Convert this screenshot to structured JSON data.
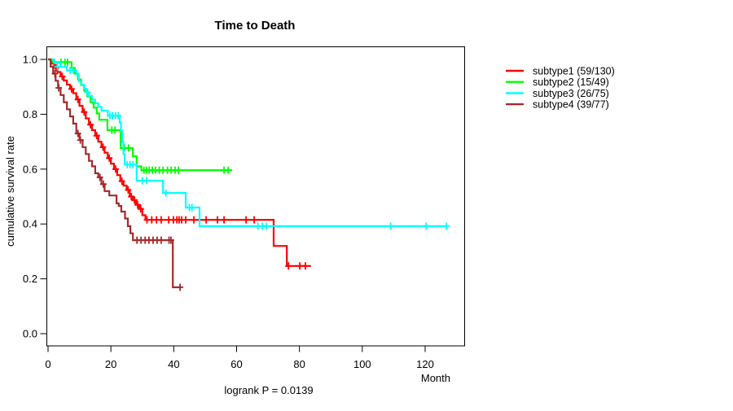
{
  "chart_data": {
    "type": "line",
    "subtype": "kaplan-meier-step",
    "title": "Time to Death",
    "xlabel": "Month",
    "ylabel": "cumulative survival rate",
    "footnote": "logrank P = 0.0139",
    "xlim": [
      0,
      132
    ],
    "ylim": [
      0,
      1.05
    ],
    "x_ticks": [
      0,
      20,
      40,
      60,
      80,
      100,
      120
    ],
    "y_ticks": [
      "0.0",
      "0.2",
      "0.4",
      "0.6",
      "0.8",
      "1.0"
    ],
    "grid": false,
    "legend_position": "right-outside",
    "axis_color": "#000000",
    "series": [
      {
        "name": "subtype1",
        "label": "subtype1 (59/130)",
        "color": "#FF0000",
        "steps": [
          [
            0,
            1.0
          ],
          [
            1,
            0.985
          ],
          [
            2,
            0.969
          ],
          [
            3,
            0.954
          ],
          [
            4,
            0.938
          ],
          [
            5,
            0.923
          ],
          [
            6,
            0.908
          ],
          [
            7,
            0.892
          ],
          [
            8,
            0.877
          ],
          [
            9,
            0.854
          ],
          [
            10,
            0.831
          ],
          [
            11,
            0.808
          ],
          [
            12,
            0.785
          ],
          [
            13,
            0.762
          ],
          [
            14,
            0.742
          ],
          [
            15,
            0.722
          ],
          [
            16,
            0.7
          ],
          [
            17,
            0.68
          ],
          [
            18,
            0.66
          ],
          [
            19,
            0.64
          ],
          [
            20,
            0.62
          ],
          [
            21,
            0.6
          ],
          [
            22,
            0.578
          ],
          [
            23,
            0.556
          ],
          [
            24,
            0.54
          ],
          [
            25,
            0.524
          ],
          [
            26,
            0.5
          ],
          [
            27,
            0.487
          ],
          [
            28,
            0.47
          ],
          [
            29,
            0.455
          ],
          [
            30,
            0.432
          ],
          [
            31,
            0.415
          ],
          [
            71.8,
            0.415
          ],
          [
            71.8,
            0.32
          ],
          [
            76,
            0.32
          ],
          [
            76,
            0.247
          ],
          [
            83.7,
            0.247
          ]
        ],
        "censors": [
          [
            2.5,
            0.969
          ],
          [
            4.5,
            0.938
          ],
          [
            7.5,
            0.892
          ],
          [
            9.5,
            0.854
          ],
          [
            11.5,
            0.808
          ],
          [
            13.5,
            0.762
          ],
          [
            15.5,
            0.722
          ],
          [
            17.5,
            0.68
          ],
          [
            19.5,
            0.64
          ],
          [
            21.5,
            0.6
          ],
          [
            23.5,
            0.556
          ],
          [
            25.5,
            0.524
          ],
          [
            26.5,
            0.5
          ],
          [
            27.5,
            0.487
          ],
          [
            28.5,
            0.47
          ],
          [
            29.5,
            0.455
          ],
          [
            31.5,
            0.415
          ],
          [
            33,
            0.415
          ],
          [
            34.5,
            0.415
          ],
          [
            36,
            0.415
          ],
          [
            38.4,
            0.415
          ],
          [
            39.9,
            0.415
          ],
          [
            41,
            0.415
          ],
          [
            41.7,
            0.415
          ],
          [
            42.5,
            0.415
          ],
          [
            43.8,
            0.415
          ],
          [
            46.4,
            0.415
          ],
          [
            48.2,
            0.415
          ],
          [
            50.3,
            0.415
          ],
          [
            53.9,
            0.415
          ],
          [
            56,
            0.415
          ],
          [
            63,
            0.415
          ],
          [
            65.6,
            0.415
          ],
          [
            76.5,
            0.247
          ],
          [
            80.1,
            0.247
          ],
          [
            81.9,
            0.247
          ]
        ]
      },
      {
        "name": "subtype2",
        "label": "subtype2 (15/49)",
        "color": "#00FF00",
        "steps": [
          [
            0,
            1.0
          ],
          [
            1.5,
            0.99
          ],
          [
            7.5,
            0.969
          ],
          [
            8.5,
            0.948
          ],
          [
            9.5,
            0.927
          ],
          [
            10.5,
            0.906
          ],
          [
            11.5,
            0.886
          ],
          [
            12.5,
            0.865
          ],
          [
            13.5,
            0.844
          ],
          [
            14.5,
            0.824
          ],
          [
            15.5,
            0.803
          ],
          [
            16.3,
            0.78
          ],
          [
            18.9,
            0.742
          ],
          [
            23.1,
            0.677
          ],
          [
            27,
            0.647
          ],
          [
            28.2,
            0.61
          ],
          [
            29.7,
            0.596
          ],
          [
            58.6,
            0.596
          ]
        ],
        "censors": [
          [
            4.1,
            0.99
          ],
          [
            5.4,
            0.99
          ],
          [
            6.2,
            0.99
          ],
          [
            20.3,
            0.742
          ],
          [
            21.3,
            0.742
          ],
          [
            24.3,
            0.677
          ],
          [
            25.6,
            0.677
          ],
          [
            30.5,
            0.596
          ],
          [
            31.3,
            0.596
          ],
          [
            32.2,
            0.596
          ],
          [
            33.2,
            0.596
          ],
          [
            34.2,
            0.596
          ],
          [
            35.4,
            0.596
          ],
          [
            36.6,
            0.596
          ],
          [
            38,
            0.596
          ],
          [
            39.2,
            0.596
          ],
          [
            40.4,
            0.596
          ],
          [
            41.5,
            0.596
          ],
          [
            56,
            0.596
          ],
          [
            57.3,
            0.596
          ]
        ]
      },
      {
        "name": "subtype3",
        "label": "subtype3 (26/75)",
        "color": "#00FFFF",
        "steps": [
          [
            0,
            1.0
          ],
          [
            2,
            0.987
          ],
          [
            4,
            0.973
          ],
          [
            6,
            0.96
          ],
          [
            9,
            0.947
          ],
          [
            9.8,
            0.92
          ],
          [
            10.6,
            0.907
          ],
          [
            11.4,
            0.893
          ],
          [
            12.2,
            0.88
          ],
          [
            13,
            0.867
          ],
          [
            14,
            0.853
          ],
          [
            15,
            0.84
          ],
          [
            16,
            0.827
          ],
          [
            17,
            0.813
          ],
          [
            19,
            0.795
          ],
          [
            22.8,
            0.77
          ],
          [
            23.2,
            0.74
          ],
          [
            23.6,
            0.7
          ],
          [
            24,
            0.655
          ],
          [
            24.4,
            0.617
          ],
          [
            28.2,
            0.558
          ],
          [
            36.6,
            0.513
          ],
          [
            43.8,
            0.46
          ],
          [
            48.2,
            0.392
          ],
          [
            127,
            0.392
          ]
        ],
        "censors": [
          [
            3,
            0.973
          ],
          [
            7,
            0.96
          ],
          [
            8,
            0.96
          ],
          [
            12.6,
            0.88
          ],
          [
            19.7,
            0.795
          ],
          [
            20.5,
            0.795
          ],
          [
            21.5,
            0.795
          ],
          [
            22.3,
            0.795
          ],
          [
            25.2,
            0.617
          ],
          [
            26.1,
            0.617
          ],
          [
            27,
            0.617
          ],
          [
            30,
            0.558
          ],
          [
            31.4,
            0.558
          ],
          [
            37.5,
            0.513
          ],
          [
            45,
            0.46
          ],
          [
            45.8,
            0.46
          ],
          [
            66.8,
            0.392
          ],
          [
            68.2,
            0.392
          ],
          [
            69.5,
            0.392
          ],
          [
            109,
            0.392
          ],
          [
            120.3,
            0.392
          ],
          [
            126.8,
            0.392
          ]
        ]
      },
      {
        "name": "subtype4",
        "label": "subtype4 (39/77)",
        "color": "#A52A2A",
        "steps": [
          [
            0,
            1.0
          ],
          [
            0.8,
            0.974
          ],
          [
            1.6,
            0.948
          ],
          [
            2.4,
            0.922
          ],
          [
            3.2,
            0.896
          ],
          [
            4,
            0.87
          ],
          [
            5,
            0.844
          ],
          [
            6,
            0.818
          ],
          [
            7,
            0.792
          ],
          [
            8,
            0.766
          ],
          [
            9,
            0.73
          ],
          [
            10,
            0.706
          ],
          [
            11,
            0.68
          ],
          [
            12,
            0.655
          ],
          [
            13,
            0.63
          ],
          [
            14,
            0.61
          ],
          [
            15,
            0.585
          ],
          [
            16,
            0.57
          ],
          [
            17,
            0.545
          ],
          [
            18,
            0.52
          ],
          [
            19.5,
            0.504
          ],
          [
            21.8,
            0.475
          ],
          [
            22.5,
            0.466
          ],
          [
            23.3,
            0.445
          ],
          [
            24.5,
            0.42
          ],
          [
            25.4,
            0.392
          ],
          [
            26.2,
            0.366
          ],
          [
            27,
            0.341
          ],
          [
            39.7,
            0.341
          ],
          [
            39.7,
            0.169
          ],
          [
            42.5,
            0.169
          ]
        ],
        "censors": [
          [
            2.2,
            0.948
          ],
          [
            3.4,
            0.896
          ],
          [
            9.5,
            0.73
          ],
          [
            10.3,
            0.706
          ],
          [
            16.5,
            0.57
          ],
          [
            17.6,
            0.545
          ],
          [
            28.3,
            0.341
          ],
          [
            29.6,
            0.341
          ],
          [
            30.9,
            0.341
          ],
          [
            32.1,
            0.341
          ],
          [
            33.4,
            0.341
          ],
          [
            34.7,
            0.341
          ],
          [
            36,
            0.341
          ],
          [
            38.5,
            0.341
          ],
          [
            39.1,
            0.341
          ],
          [
            42,
            0.169
          ]
        ]
      }
    ]
  }
}
